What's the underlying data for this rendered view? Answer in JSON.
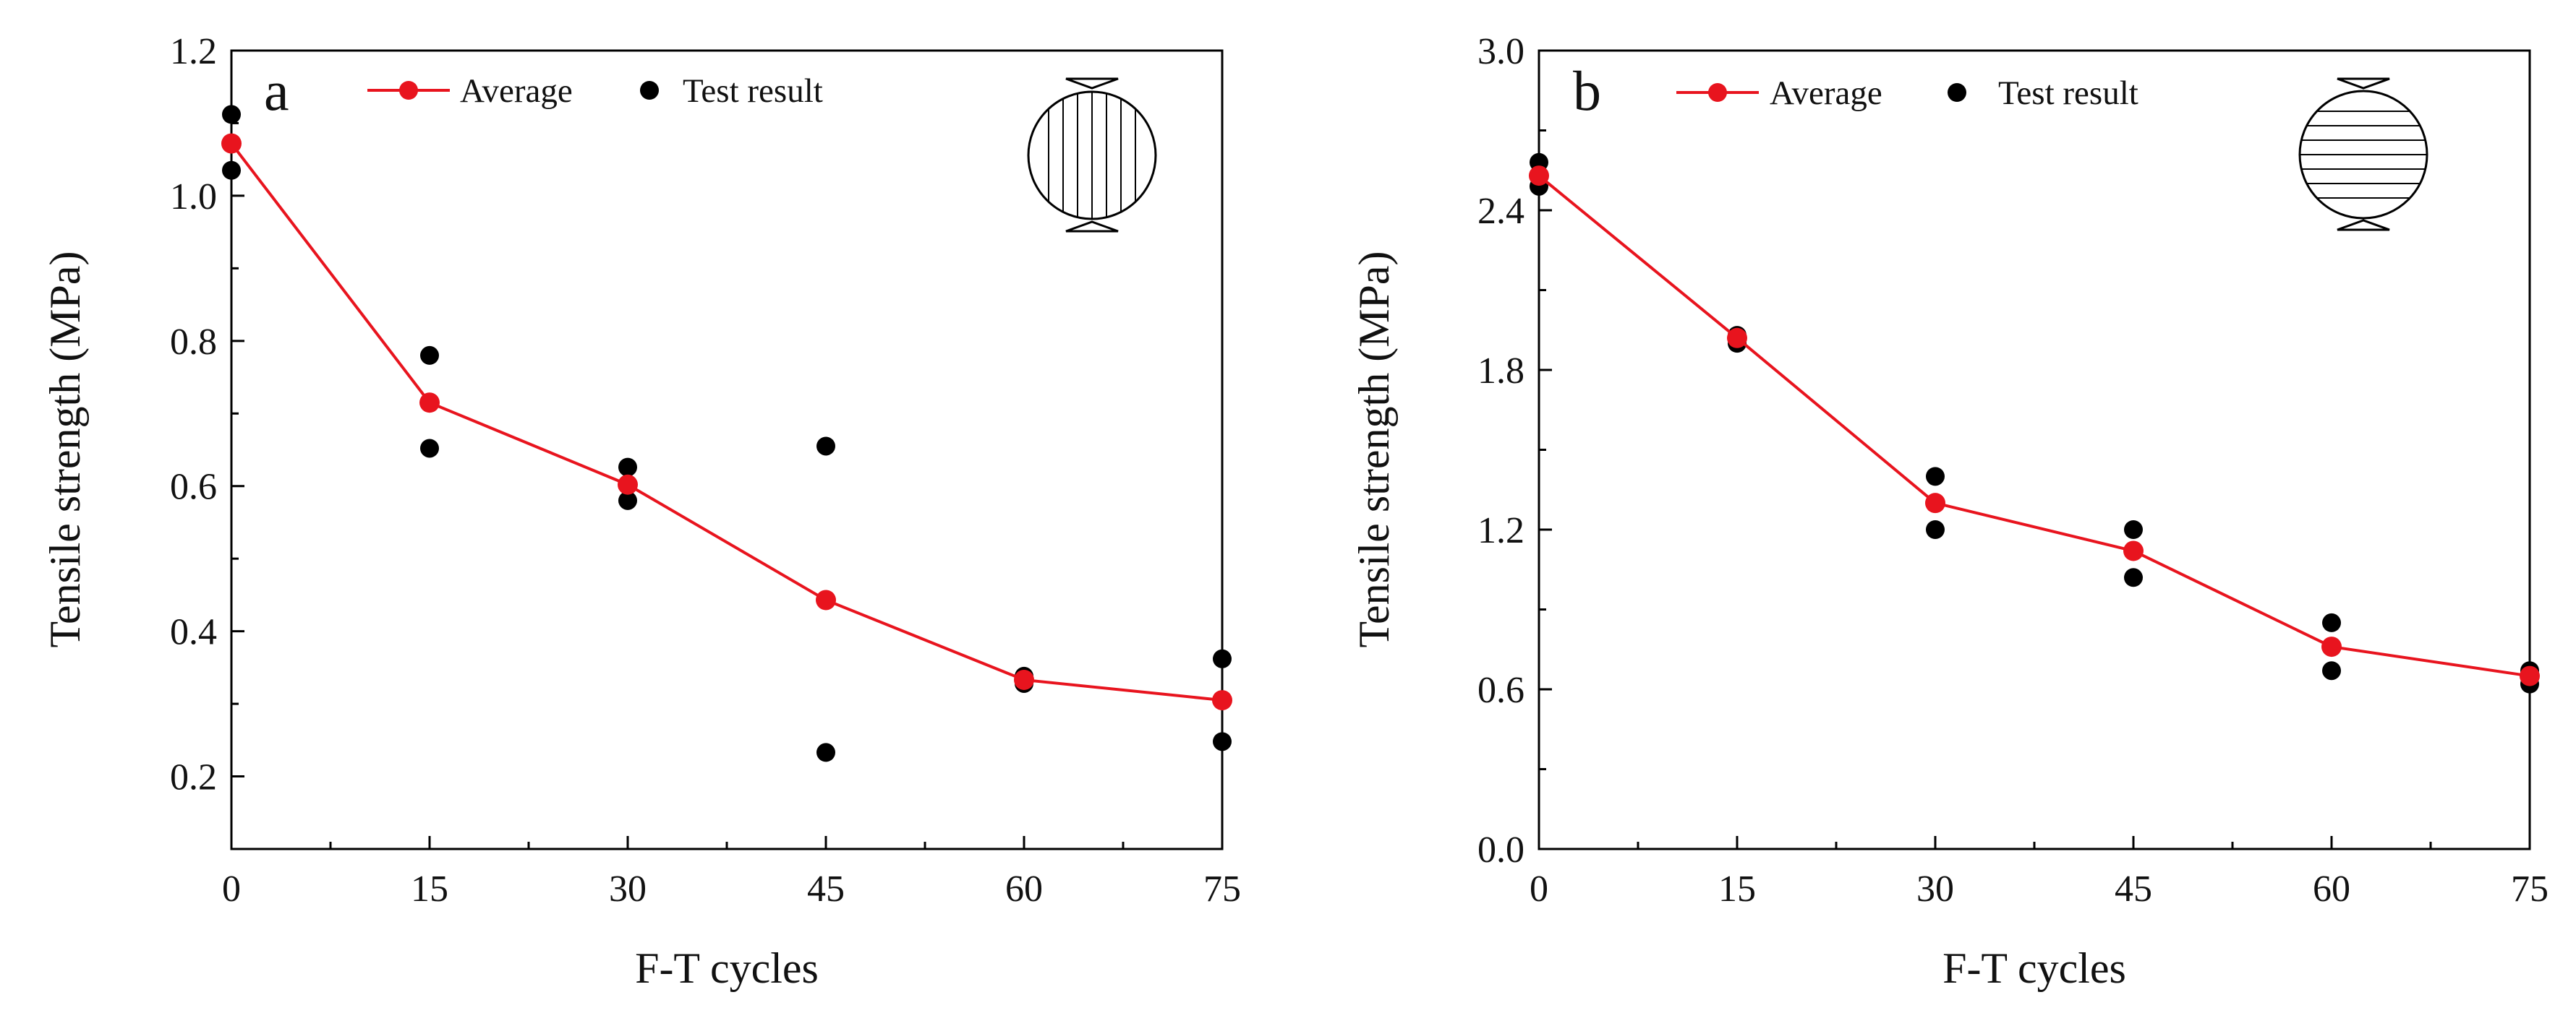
{
  "chart_data": [
    {
      "type": "line",
      "panel_label": "a",
      "title": "",
      "xlabel": "F-T cycles",
      "ylabel": "Tensile strength (MPa)",
      "xlim": [
        0,
        75
      ],
      "ylim": [
        0.1,
        1.2
      ],
      "xticks": [
        0,
        15,
        30,
        45,
        60,
        75
      ],
      "xtick_labels": [
        "0",
        "15",
        "30",
        "45",
        "60",
        "75"
      ],
      "yticks": [
        0.2,
        0.4,
        0.6,
        0.8,
        1.0,
        1.2
      ],
      "ytick_labels": [
        "0.2",
        "0.4",
        "0.6",
        "0.8",
        "1.0",
        "1.2"
      ],
      "grid": false,
      "legend": {
        "placement": "top",
        "entries": [
          "Average",
          "Test result"
        ]
      },
      "specimen_icon": "vertical-lines",
      "series": [
        {
          "name": "Average",
          "style": "line+markers",
          "color": "#e8141e",
          "x": [
            0,
            15,
            30,
            45,
            60,
            75
          ],
          "y": [
            1.072,
            0.715,
            0.602,
            0.443,
            0.333,
            0.305
          ]
        },
        {
          "name": "Test result",
          "style": "markers",
          "color": "#000000",
          "x": [
            0,
            0,
            15,
            15,
            30,
            30,
            45,
            45,
            60,
            60,
            75,
            75
          ],
          "y": [
            1.112,
            1.035,
            0.78,
            0.652,
            0.626,
            0.58,
            0.655,
            0.233,
            0.338,
            0.328,
            0.362,
            0.248
          ]
        }
      ]
    },
    {
      "type": "line",
      "panel_label": "b",
      "title": "",
      "xlabel": "F-T cycles",
      "ylabel": "Tensile strength (MPa)",
      "xlim": [
        0,
        75
      ],
      "ylim": [
        0.0,
        3.0
      ],
      "xticks": [
        0,
        15,
        30,
        45,
        60,
        75
      ],
      "xtick_labels": [
        "0",
        "15",
        "30",
        "45",
        "60",
        "75"
      ],
      "yticks": [
        0.0,
        0.6,
        1.2,
        1.8,
        2.4,
        3.0
      ],
      "ytick_labels": [
        "0.0",
        "0.6",
        "1.2",
        "1.8",
        "2.4",
        "3.0"
      ],
      "grid": false,
      "legend": {
        "placement": "top",
        "entries": [
          "Average",
          "Test result"
        ]
      },
      "specimen_icon": "horizontal-lines",
      "series": [
        {
          "name": "Average",
          "style": "line+markers",
          "color": "#e8141e",
          "x": [
            0,
            15,
            30,
            45,
            60,
            75
          ],
          "y": [
            2.53,
            1.92,
            1.3,
            1.12,
            0.76,
            0.65
          ]
        },
        {
          "name": "Test result",
          "style": "markers",
          "color": "#000000",
          "x": [
            0,
            0,
            15,
            15,
            30,
            30,
            45,
            45,
            60,
            60,
            75,
            75
          ],
          "y": [
            2.58,
            2.49,
            1.93,
            1.9,
            1.4,
            1.2,
            1.2,
            1.02,
            0.85,
            0.67,
            0.67,
            0.62
          ]
        }
      ]
    }
  ]
}
